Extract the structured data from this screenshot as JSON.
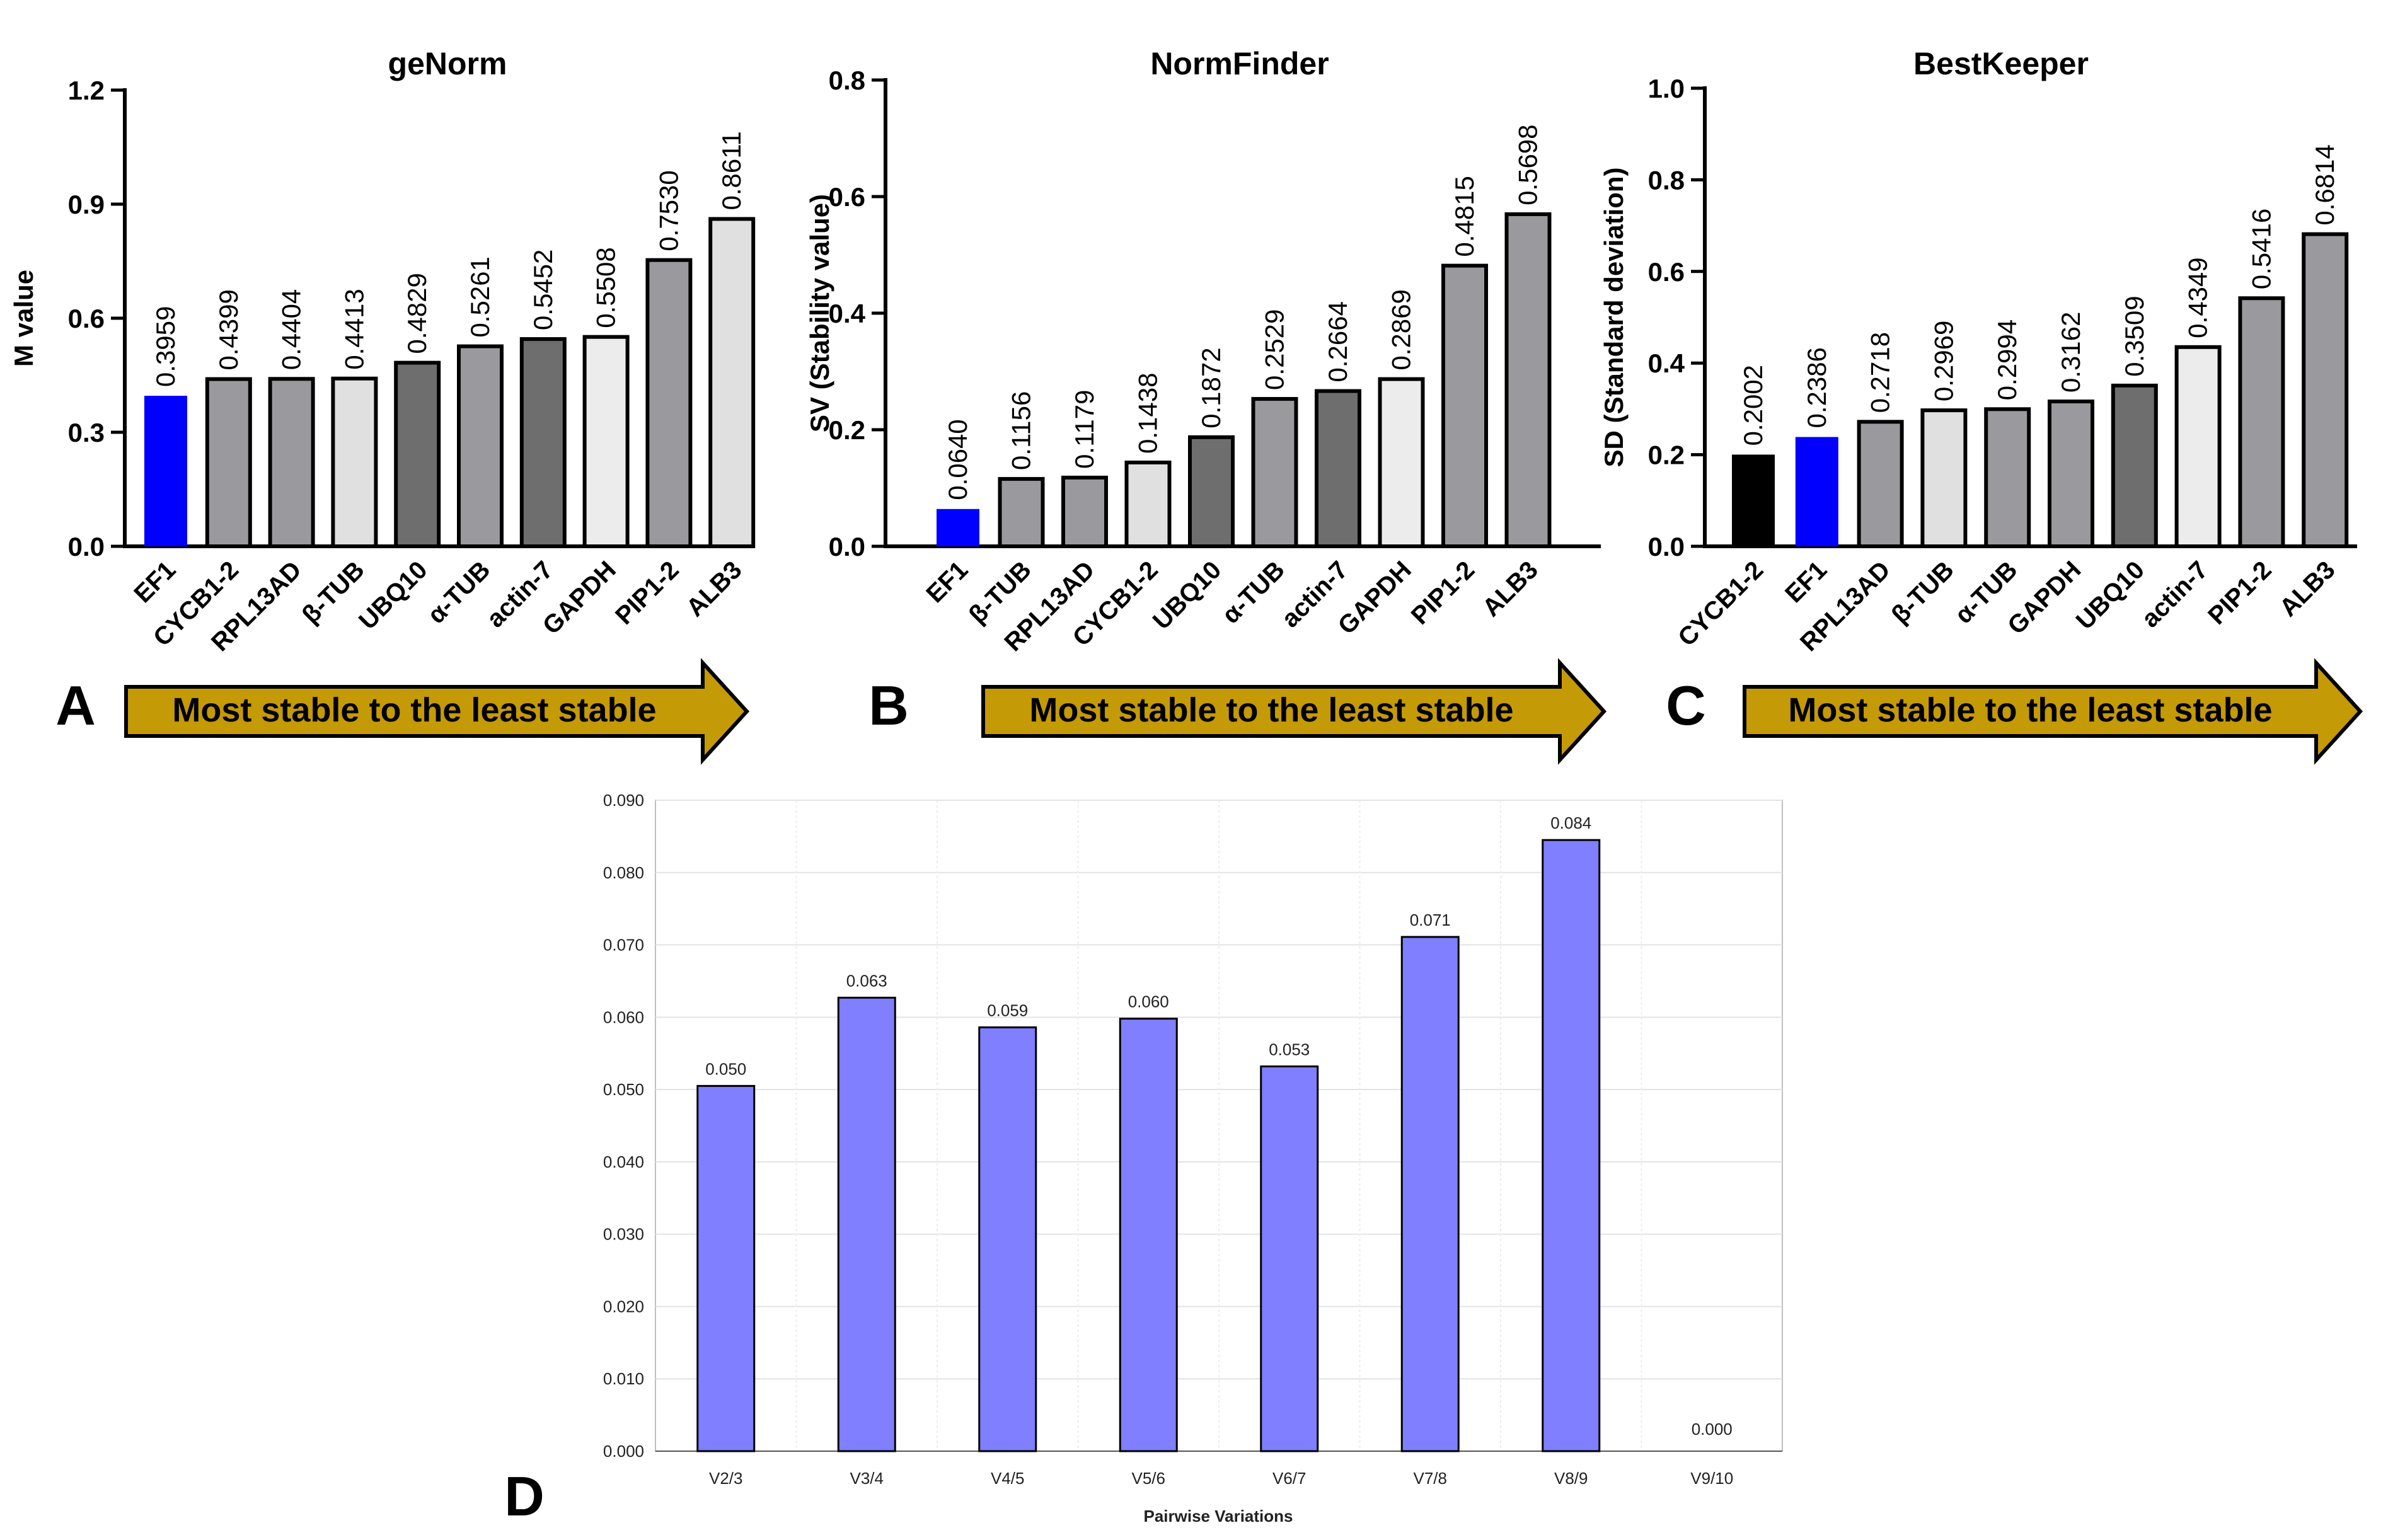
{
  "colors": {
    "blue": "#0000ff",
    "black": "#000000",
    "dark_gray": "#6e6e6e",
    "mid_gray": "#9a9a9e",
    "light_gray": "#e0e0e0",
    "lighter_gray": "#ececec",
    "arrow_gold": "#c49a06",
    "pairwise_bar": "#7f7fff"
  },
  "chart_data": [
    {
      "type": "bar",
      "panel_letter": "A",
      "title": "geNorm",
      "xlabel": "",
      "ylabel": "M value",
      "ylim": [
        0,
        1.2
      ],
      "yticks": [
        "0.0",
        "0.3",
        "0.6",
        "0.9",
        "1.2"
      ],
      "categories": [
        "EF1",
        "CYCB1-2",
        "RPL13AD",
        "β-TUB",
        "UBQ10",
        "α-TUB",
        "actin-7",
        "GAPDH",
        "PIP1-2",
        "ALB3"
      ],
      "values": [
        0.3959,
        0.4399,
        0.4404,
        0.4413,
        0.4829,
        0.5261,
        0.5452,
        0.5508,
        0.753,
        0.8611
      ],
      "value_labels": [
        "0.3959",
        "0.4399",
        "0.4404",
        "0.4413",
        "0.4829",
        "0.5261",
        "0.5452",
        "0.5508",
        "0.7530",
        "0.8611"
      ],
      "bar_colors": [
        "blue",
        "mid_gray",
        "mid_gray",
        "light_gray",
        "dark_gray",
        "mid_gray",
        "dark_gray",
        "lighter_gray",
        "mid_gray",
        "light_gray"
      ],
      "arrow_label": "Most stable to the least stable"
    },
    {
      "type": "bar",
      "panel_letter": "B",
      "title": "NormFinder",
      "xlabel": "",
      "ylabel": "SV (Stability value)",
      "ylim": [
        0,
        0.8
      ],
      "yticks": [
        "0.0",
        "0.2",
        "0.4",
        "0.6",
        "0.8"
      ],
      "categories": [
        "EF1",
        "β-TUB",
        "RPL13AD",
        "CYCB1-2",
        "UBQ10",
        "α-TUB",
        "actin-7",
        "GAPDH",
        "PIP1-2",
        "ALB3"
      ],
      "values": [
        0.064,
        0.1156,
        0.1179,
        0.1438,
        0.1872,
        0.2529,
        0.2664,
        0.2869,
        0.4815,
        0.5698
      ],
      "value_labels": [
        "0.0640",
        "0.1156",
        "0.1179",
        "0.1438",
        "0.1872",
        "0.2529",
        "0.2664",
        "0.2869",
        "0.4815",
        "0.5698"
      ],
      "bar_colors": [
        "blue",
        "mid_gray",
        "mid_gray",
        "light_gray",
        "dark_gray",
        "mid_gray",
        "dark_gray",
        "lighter_gray",
        "mid_gray",
        "mid_gray"
      ],
      "arrow_label": "Most stable to the least stable"
    },
    {
      "type": "bar",
      "panel_letter": "C",
      "title": "BestKeeper",
      "xlabel": "",
      "ylabel": "SD (Standard deviation)",
      "ylim": [
        0,
        1.0
      ],
      "yticks": [
        "0.0",
        "0.2",
        "0.4",
        "0.6",
        "0.8",
        "1.0"
      ],
      "categories": [
        "CYCB1-2",
        "EF1",
        "RPL13AD",
        "β-TUB",
        "α-TUB",
        "GAPDH",
        "UBQ10",
        "actin-7",
        "PIP1-2",
        "ALB3"
      ],
      "values": [
        0.2002,
        0.2386,
        0.2718,
        0.2969,
        0.2994,
        0.3162,
        0.3509,
        0.4349,
        0.5416,
        0.6814
      ],
      "value_labels": [
        "0.2002",
        "0.2386",
        "0.2718",
        "0.2969",
        "0.2994",
        "0.3162",
        "0.3509",
        "0.4349",
        "0.5416",
        "0.6814"
      ],
      "bar_colors": [
        "black",
        "blue",
        "mid_gray",
        "light_gray",
        "mid_gray",
        "mid_gray",
        "dark_gray",
        "lighter_gray",
        "mid_gray",
        "mid_gray"
      ],
      "arrow_label": "Most stable to the least stable"
    },
    {
      "type": "bar",
      "panel_letter": "D",
      "title": "",
      "xlabel": "Pairwise Variations",
      "ylabel": "",
      "ylim": [
        0,
        0.09
      ],
      "yticks": [
        "0.000",
        "0.010",
        "0.020",
        "0.030",
        "0.040",
        "0.050",
        "0.060",
        "0.070",
        "0.080",
        "0.090"
      ],
      "categories": [
        "V2/3",
        "V3/4",
        "V4/5",
        "V5/6",
        "V6/7",
        "V7/8",
        "V8/9",
        "V9/10"
      ],
      "values": [
        0.0505,
        0.0627,
        0.0586,
        0.0598,
        0.0532,
        0.0711,
        0.0845,
        0.0
      ],
      "value_labels": [
        "0.050",
        "0.063",
        "0.059",
        "0.060",
        "0.053",
        "0.071",
        "0.084",
        "0.000"
      ],
      "bar_colors": [
        "pairwise_bar",
        "pairwise_bar",
        "pairwise_bar",
        "pairwise_bar",
        "pairwise_bar",
        "pairwise_bar",
        "pairwise_bar",
        "pairwise_bar"
      ],
      "grid": true
    }
  ]
}
